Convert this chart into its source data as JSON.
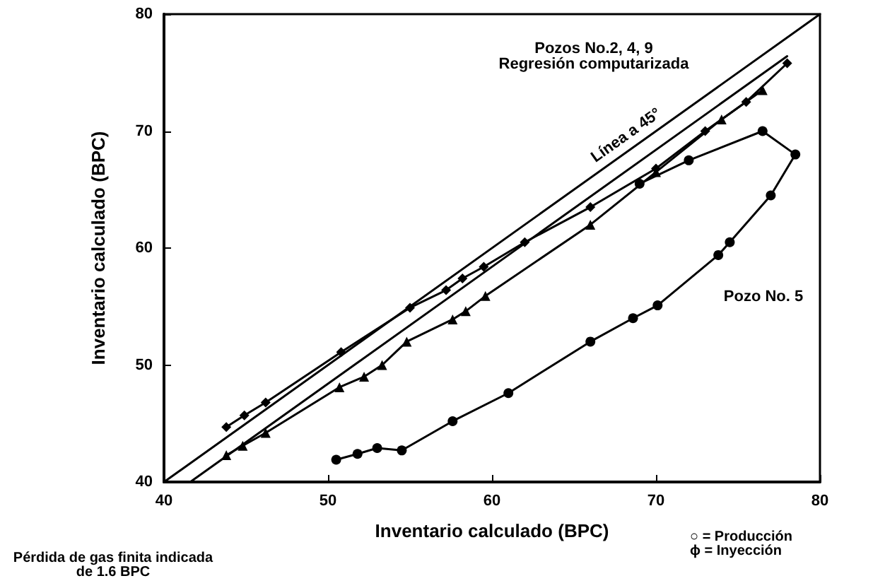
{
  "chart_data": {
    "type": "line",
    "xlabel": "Inventario calculado (BPC)",
    "ylabel": "Inventario calculado (BPC)",
    "xlim": [
      40,
      80
    ],
    "ylim": [
      40,
      80
    ],
    "xticks": [
      40,
      50,
      60,
      70,
      80
    ],
    "yticks": [
      40,
      50,
      60,
      70,
      80
    ],
    "grid": false,
    "line_style": "solid",
    "series": [
      {
        "color": "#000000",
        "marker": "none",
        "x": [
          40,
          80
        ],
        "values": [
          40,
          80
        ]
      },
      {
        "color": "#000000",
        "marker": "none",
        "x": [
          41.6,
          78
        ],
        "values": [
          40,
          76.4
        ]
      },
      {
        "color": "#000000",
        "marker": "diamond",
        "x": [
          43.8,
          44.9,
          46.2,
          50.8,
          55,
          57.2,
          58.2,
          59.5,
          62,
          66,
          70,
          73,
          75.5,
          78
        ],
        "values": [
          44.7,
          45.7,
          46.8,
          51.1,
          54.9,
          56.4,
          57.4,
          58.4,
          60.5,
          63.5,
          66.8,
          70,
          72.5,
          75.8
        ]
      },
      {
        "color": "#000000",
        "marker": "triangle",
        "x": [
          43.8,
          44.8,
          46.2,
          50.7,
          52.2,
          53.3,
          54.8,
          57.6,
          58.4,
          59.6,
          66,
          70,
          74,
          76.5
        ],
        "values": [
          42.3,
          43.1,
          44.2,
          48.1,
          49,
          50,
          52,
          53.9,
          54.6,
          55.9,
          62,
          66.5,
          71,
          73.5
        ]
      },
      {
        "color": "#000000",
        "marker": "circle",
        "x": [
          50.5,
          51.8,
          53,
          54.5,
          57.6,
          61,
          66,
          68.6,
          70.1,
          73.8,
          74.5,
          77,
          78.5,
          76.5,
          72,
          69
        ],
        "values": [
          41.9,
          42.4,
          42.9,
          42.7,
          45.2,
          47.6,
          52,
          54,
          55.1,
          59.4,
          60.5,
          64.5,
          68,
          70,
          67.5,
          65.5
        ]
      }
    ],
    "annotations": [
      "Pozos No.2, 4, 9\nRegresión computarizada",
      "Línea a 45°",
      "Pozo No. 5",
      "Pérdida de gas finita indicada\nde 1.6 BPC",
      "○ = Producción\nϕ = Inyección"
    ]
  }
}
